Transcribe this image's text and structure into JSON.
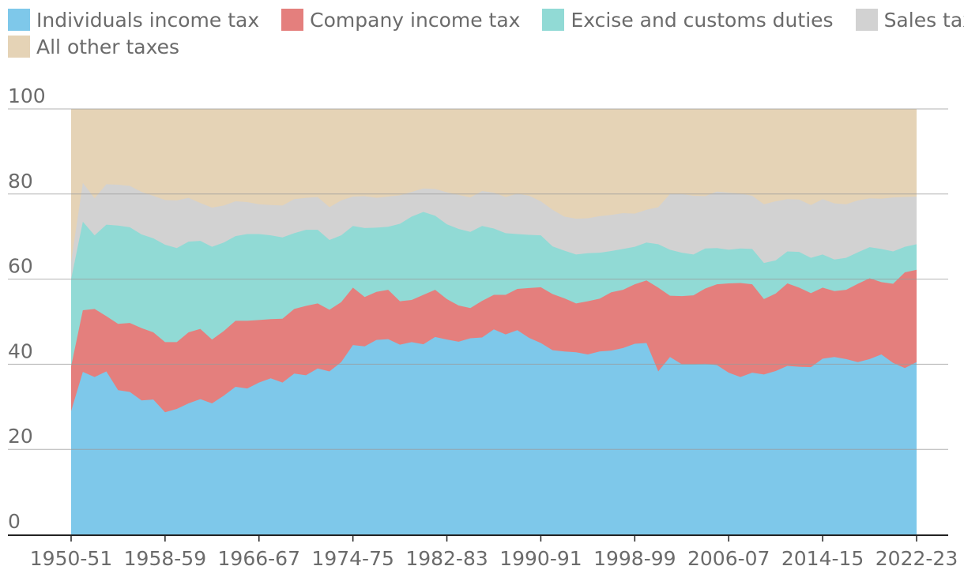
{
  "legend": [
    {
      "label": "Individuals income tax",
      "color": "#7ec8ea"
    },
    {
      "label": "Company income tax",
      "color": "#e47f7d"
    },
    {
      "label": "Excise and customs duties",
      "color": "#91dad5"
    },
    {
      "label": "Sales tax",
      "color": "#d2d2d2"
    },
    {
      "label": "All other taxes",
      "color": "#e5d3b6"
    }
  ],
  "chart_data": {
    "type": "area",
    "stacked": true,
    "title": "",
    "xlabel": "",
    "ylabel": "",
    "ylim": [
      0,
      100
    ],
    "yticks": [
      0,
      20,
      40,
      60,
      80,
      100
    ],
    "grid": true,
    "legend_position": "top-left",
    "start_year": 1950,
    "xtick_labels": [
      "1950-51",
      "1958-59",
      "1966-67",
      "1974-75",
      "1982-83",
      "1990-91",
      "1998-99",
      "2006-07",
      "2014-15",
      "2022-23"
    ],
    "series": [
      {
        "name": "Individuals income tax",
        "color": "#7ec8ea",
        "cumulative_top": [
          29,
          38.2,
          37,
          38.3,
          33.9,
          33.5,
          31.5,
          31.7,
          28.7,
          29.5,
          30.8,
          31.8,
          30.8,
          32.6,
          34.7,
          34.3,
          35.7,
          36.7,
          35.7,
          37.8,
          37.4,
          39,
          38.3,
          40.5,
          44.5,
          44.2,
          45.7,
          45.9,
          44.6,
          45.2,
          44.7,
          46.4,
          45.8,
          45.3,
          46.1,
          46.3,
          48.2,
          47,
          48,
          46.2,
          45,
          43.3,
          43,
          42.8,
          42.3,
          43,
          43.2,
          43.8,
          44.8,
          45,
          38.3,
          41.7,
          40,
          40,
          40.1,
          39.8,
          38,
          37,
          38,
          37.6,
          38.4,
          39.6,
          39.4,
          39.3,
          41.3,
          41.7,
          41.2,
          40.5,
          41.2,
          42.3,
          40.3,
          39.1,
          40.5
        ]
      },
      {
        "name": "Company income tax",
        "color": "#e47f7d",
        "cumulative_top": [
          39.5,
          52.7,
          53,
          51.3,
          49.5,
          49.7,
          48.5,
          47.5,
          45.2,
          45.2,
          47.5,
          48.3,
          45.8,
          47.8,
          50.2,
          50.2,
          50.4,
          50.6,
          50.7,
          53,
          53.7,
          54.3,
          52.8,
          54.6,
          58,
          55.8,
          57,
          57.5,
          54.8,
          55.1,
          56.3,
          57.5,
          55.3,
          53.8,
          53.2,
          54.9,
          56.3,
          56.3,
          57.7,
          57.9,
          58.1,
          56.5,
          55.5,
          54.3,
          54.8,
          55.4,
          56.9,
          57.5,
          58.8,
          59.7,
          58,
          56.1,
          56,
          56.2,
          57.8,
          58.8,
          59,
          59.1,
          58.8,
          55.3,
          56.6,
          59,
          58,
          56.7,
          58,
          57.2,
          57.5,
          58.9,
          60.2,
          59.3,
          58.9,
          61.6,
          62.2
        ]
      },
      {
        "name": "Excise and customs duties",
        "color": "#91dad5",
        "cumulative_top": [
          60,
          73.5,
          70.3,
          72.8,
          72.6,
          72.2,
          70.5,
          69.6,
          68.1,
          67.3,
          68.8,
          69,
          67.6,
          68.6,
          70.1,
          70.6,
          70.6,
          70.3,
          69.8,
          70.8,
          71.6,
          71.6,
          69.2,
          70.3,
          72.5,
          72,
          72.1,
          72.3,
          73,
          74.7,
          75.8,
          74.9,
          72.9,
          71.8,
          71.1,
          72.5,
          71.9,
          70.8,
          70.6,
          70.4,
          70.3,
          67.7,
          66.7,
          65.8,
          66.1,
          66.2,
          66.6,
          67.1,
          67.6,
          68.6,
          68.2,
          66.9,
          66.2,
          65.8,
          67.2,
          67.3,
          66.9,
          67.2,
          67.1,
          63.8,
          64.4,
          66.5,
          66.4,
          65,
          65.8,
          64.6,
          65,
          66.3,
          67.5,
          67.1,
          66.5,
          67.6,
          68.2
        ]
      },
      {
        "name": "Sales tax",
        "color": "#d2d2d2",
        "cumulative_top": [
          64,
          82.6,
          79,
          82.3,
          82.2,
          81.9,
          80.5,
          79.6,
          78.6,
          78.5,
          79.1,
          77.9,
          76.8,
          77.3,
          78.3,
          78.1,
          77.6,
          77.4,
          77.3,
          78.8,
          79.1,
          79.3,
          76.9,
          78.5,
          79.4,
          79.5,
          79.1,
          79.4,
          79.7,
          80.5,
          81.3,
          81.2,
          80.4,
          79.8,
          79.2,
          80.7,
          80.3,
          79.3,
          80.1,
          79.6,
          78.3,
          76.3,
          74.7,
          74.2,
          74.3,
          74.8,
          75.1,
          75.5,
          75.4,
          76.3,
          76.9,
          80,
          80,
          79.6,
          79.5,
          80.6,
          80.3,
          80.1,
          79.6,
          77.6,
          78.3,
          78.8,
          78.7,
          77.4,
          78.8,
          77.8,
          77.6,
          78.5,
          79,
          78.9,
          79.2,
          79.3,
          79.4
        ]
      },
      {
        "name": "All other taxes",
        "color": "#e5d3b6",
        "cumulative_top": [
          100,
          100,
          100,
          100,
          100,
          100,
          100,
          100,
          100,
          100,
          100,
          100,
          100,
          100,
          100,
          100,
          100,
          100,
          100,
          100,
          100,
          100,
          100,
          100,
          100,
          100,
          100,
          100,
          100,
          100,
          100,
          100,
          100,
          100,
          100,
          100,
          100,
          100,
          100,
          100,
          100,
          100,
          100,
          100,
          100,
          100,
          100,
          100,
          100,
          100,
          100,
          100,
          100,
          100,
          100,
          100,
          100,
          100,
          100,
          100,
          100,
          100,
          100,
          100,
          100,
          100,
          100,
          100,
          100,
          100,
          100,
          100,
          100
        ]
      }
    ]
  }
}
